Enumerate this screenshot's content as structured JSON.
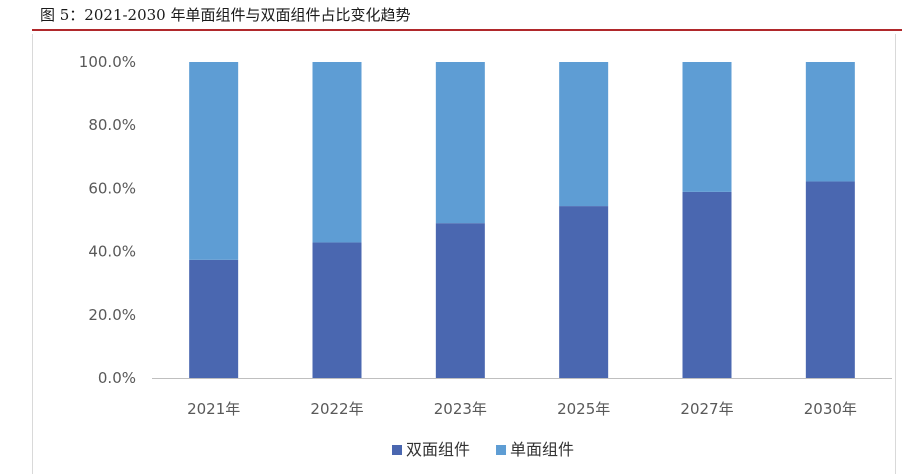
{
  "caption": "图 5：2021-2030 年单面组件与双面组件占比变化趋势",
  "chart_data": {
    "type": "bar",
    "stacked": true,
    "categories": [
      "2021年",
      "2022年",
      "2023年",
      "2025年",
      "2027年",
      "2030年"
    ],
    "series": [
      {
        "name": "双面组件",
        "color": "#4a67b0",
        "values": [
          37.4,
          42.9,
          49.0,
          54.4,
          58.9,
          62.2
        ]
      },
      {
        "name": "单面组件",
        "color": "#5e9dd4",
        "values": [
          62.6,
          57.1,
          51.0,
          45.6,
          41.1,
          37.8
        ]
      }
    ],
    "ylim": [
      0,
      100
    ],
    "yticks": [
      0,
      20,
      40,
      60,
      80,
      100
    ],
    "ytick_labels": [
      "0.0%",
      "20.0%",
      "40.0%",
      "60.0%",
      "80.0%",
      "100.0%"
    ],
    "grid": false,
    "legend": "bottom-center"
  }
}
